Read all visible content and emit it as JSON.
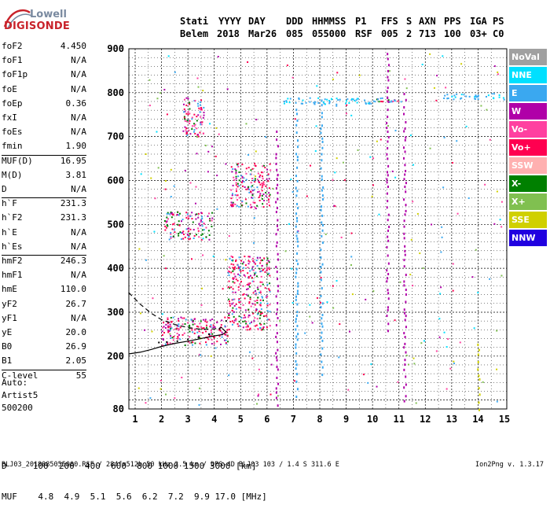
{
  "logo": {
    "top": "Lowell",
    "bottom": "DIGISONDE"
  },
  "header": {
    "labels": [
      "Stati",
      "YYYY",
      "DAY",
      "DDD",
      "HHMMSS",
      "P1",
      "FFS",
      "S",
      "AXN",
      "PPS",
      "IGA",
      "PS"
    ],
    "values": [
      "Belem",
      "2018",
      "Mar26",
      "085",
      "055000",
      "RSF",
      "005",
      "2",
      "713",
      "100",
      "03+",
      "C0"
    ]
  },
  "params_group1": [
    {
      "name": "foF2",
      "value": "4.450"
    },
    {
      "name": "foF1",
      "value": "N/A"
    },
    {
      "name": "foF1p",
      "value": "N/A"
    },
    {
      "name": "foE",
      "value": "N/A"
    },
    {
      "name": "foEp",
      "value": "0.36"
    },
    {
      "name": "fxI",
      "value": "N/A"
    },
    {
      "name": "foEs",
      "value": "N/A"
    },
    {
      "name": "fmin",
      "value": "1.90"
    }
  ],
  "params_group2": [
    {
      "name": "MUF(D)",
      "value": "16.95"
    },
    {
      "name": "M(D)",
      "value": "3.81"
    },
    {
      "name": "D",
      "value": "N/A"
    }
  ],
  "params_group3": [
    {
      "name": "h`F",
      "value": "231.3"
    },
    {
      "name": "h`F2",
      "value": "231.3"
    },
    {
      "name": "h`E",
      "value": "N/A"
    },
    {
      "name": "h`Es",
      "value": "N/A"
    }
  ],
  "params_group4": [
    {
      "name": "hmF2",
      "value": "246.3"
    },
    {
      "name": "hmF1",
      "value": "N/A"
    },
    {
      "name": "hmE",
      "value": "110.0"
    },
    {
      "name": "yF2",
      "value": "26.7"
    },
    {
      "name": "yF1",
      "value": "N/A"
    },
    {
      "name": "yE",
      "value": "20.0"
    },
    {
      "name": "B0",
      "value": "26.9"
    },
    {
      "name": "B1",
      "value": "2.05"
    }
  ],
  "params_group5": [
    {
      "name": "C-level",
      "value": "55"
    }
  ],
  "auto": {
    "line1": "Auto:",
    "line2": "Artist5",
    "line3": "500200"
  },
  "legend": [
    {
      "label": "NoVal",
      "color": "#a0a0a0"
    },
    {
      "label": "NNE",
      "color": "#00e0ff"
    },
    {
      "label": "E",
      "color": "#3aa8f0"
    },
    {
      "label": "W",
      "color": "#b000a8"
    },
    {
      "label": "Vo-",
      "color": "#ff40a0"
    },
    {
      "label": "Vo+",
      "color": "#ff0050"
    },
    {
      "label": "SSW",
      "color": "#ffb0b0"
    },
    {
      "label": "X-",
      "color": "#008000"
    },
    {
      "label": "X+",
      "color": "#80c050"
    },
    {
      "label": "SSE",
      "color": "#d0d000"
    },
    {
      "label": "NNW",
      "color": "#2000e0"
    }
  ],
  "mufd_table": {
    "row1": "D     100  200  400  600  800 1000 1500 3000 [km]",
    "row2": "MUF    4.8  4.9  5.1  5.6  6.2  7.2  9.9 17.0 [MHz]"
  },
  "footer": {
    "left": "BLJ03_2018085055000.RSF / 284fx512h 50 kHz 2.5 km / DPS-4D BLJ03 103 / 1.4 S 311.6 E",
    "right": "Ion2Png v. 1.3.17"
  },
  "chart_data": {
    "type": "scatter",
    "title": "",
    "xlabel": "",
    "ylabel": "",
    "xlim": [
      0.75,
      15
    ],
    "ylim": [
      80,
      900
    ],
    "x_ticks": [
      1,
      2,
      3,
      4,
      5,
      6,
      7,
      8,
      9,
      10,
      11,
      12,
      13,
      14,
      15
    ],
    "y_ticks": [
      80,
      200,
      300,
      400,
      500,
      600,
      700,
      800,
      900
    ],
    "grid": true,
    "legend_placement": "right",
    "traces": {
      "f2_o_trace": {
        "x": [
          1.9,
          2.2,
          2.6,
          3.0,
          3.4,
          3.8,
          4.2,
          4.45
        ],
        "y": [
          231,
          232,
          234,
          238,
          243,
          250,
          262,
          280
        ]
      },
      "profile_solid": {
        "x": [
          0.75,
          1.2,
          1.6,
          2.0,
          2.5,
          3.0,
          3.5,
          4.0,
          4.3,
          4.45,
          4.3
        ],
        "y": [
          205,
          209,
          215,
          222,
          229,
          234,
          240,
          246,
          249,
          255,
          263
        ]
      },
      "profile_dashed": {
        "x": [
          0.75,
          1.2,
          1.6,
          2.0,
          2.5,
          3.0,
          3.5,
          4.0,
          4.3
        ],
        "y": [
          345,
          318,
          298,
          283,
          272,
          265,
          261,
          262,
          265
        ]
      }
    },
    "echo_clusters": [
      {
        "series": "Vo+",
        "x": [
          2.0,
          4.5
        ],
        "y": [
          225,
          290
        ]
      },
      {
        "series": "Vo+",
        "x": [
          4.5,
          6.1
        ],
        "y": [
          260,
          430
        ]
      },
      {
        "series": "Vo+",
        "x": [
          2.1,
          3.9
        ],
        "y": [
          465,
          530
        ]
      },
      {
        "series": "Vo+",
        "x": [
          4.6,
          6.1
        ],
        "y": [
          540,
          640
        ]
      },
      {
        "series": "Vo+",
        "x": [
          2.8,
          3.6
        ],
        "y": [
          700,
          790
        ]
      },
      {
        "series": "E",
        "x": [
          6.6,
          10.4
        ],
        "y": [
          775,
          790
        ]
      },
      {
        "series": "Vo+",
        "x": [
          10.0,
          11.1
        ],
        "y": [
          780,
          790
        ]
      },
      {
        "series": "E",
        "x": [
          12.6,
          15
        ],
        "y": [
          785,
          800
        ]
      }
    ]
  }
}
